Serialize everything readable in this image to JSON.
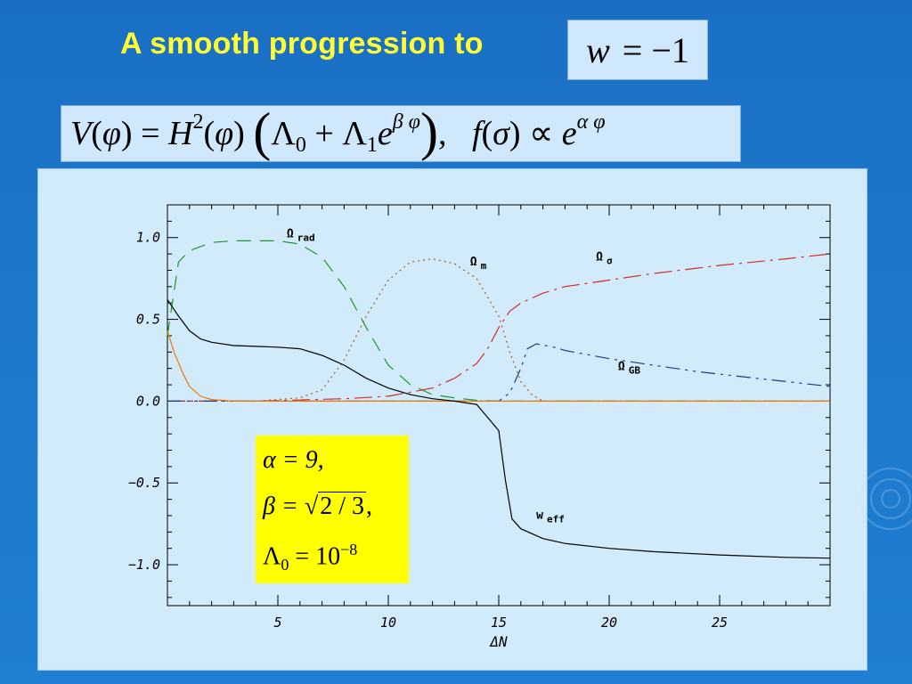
{
  "slide": {
    "title": "A smooth progression to",
    "eq_w": {
      "lhs": "w",
      "rhs": "= −1"
    }
  },
  "params": {
    "alpha": "α = 9,",
    "beta_lhs": "β = ",
    "beta_rad": "2 / 3",
    "beta_tail": ",",
    "lambda_base": "Λ",
    "lambda_sub": "0",
    "lambda_rhs": " = 10",
    "lambda_exp": "−8"
  },
  "chart_data": {
    "type": "line",
    "xlabel": "ΔN",
    "ylabel": "",
    "xlim": [
      0,
      30
    ],
    "ylim": [
      -1.25,
      1.2
    ],
    "xticks": [
      5,
      10,
      15,
      20,
      25
    ],
    "xtick_labels": [
      "5",
      "10",
      "15",
      "20",
      "25"
    ],
    "yticks": [
      1.0,
      0.5,
      0.0,
      -0.5,
      -1.0
    ],
    "ytick_labels": [
      "1.0",
      "0.5",
      "0.0",
      "−0.5",
      "−1.0"
    ],
    "grid": false,
    "series": [
      {
        "name": "Ω rad",
        "color": "#1a9a2a",
        "dash": "16 10",
        "x": [
          0.0,
          0.5,
          1.0,
          2.0,
          3.0,
          4.0,
          5.0,
          6.0,
          7.0,
          8.0,
          9.0,
          10.0,
          11.0,
          12.0,
          13.0,
          14.0,
          15.0,
          16.0,
          30.0
        ],
        "y": [
          0.4,
          0.85,
          0.92,
          0.97,
          0.98,
          0.98,
          0.98,
          0.96,
          0.88,
          0.7,
          0.45,
          0.22,
          0.1,
          0.04,
          0.02,
          0.005,
          0.0,
          0.0,
          0.0
        ]
      },
      {
        "name": "Ω m",
        "color": "#b25a1a",
        "dash": "2 4",
        "x": [
          0.0,
          4.0,
          6.0,
          7.0,
          8.0,
          9.0,
          10.0,
          11.0,
          12.0,
          13.0,
          14.0,
          15.0,
          15.5,
          16.0,
          16.5,
          17.0,
          30.0
        ],
        "y": [
          0.0,
          0.0,
          0.02,
          0.07,
          0.25,
          0.52,
          0.74,
          0.85,
          0.87,
          0.84,
          0.75,
          0.52,
          0.3,
          0.12,
          0.04,
          0.0,
          0.0
        ]
      },
      {
        "name": "Ω σ",
        "color": "#d42a2a",
        "dash": "20 6 3 6",
        "x": [
          0.0,
          4.0,
          8.0,
          10.0,
          12.0,
          13.0,
          14.0,
          14.5,
          15.0,
          15.5,
          16.0,
          17.0,
          18.0,
          20.0,
          22.0,
          25.0,
          28.0,
          30.0
        ],
        "y": [
          0.0,
          0.0,
          0.015,
          0.03,
          0.08,
          0.14,
          0.23,
          0.32,
          0.45,
          0.55,
          0.6,
          0.66,
          0.7,
          0.74,
          0.78,
          0.83,
          0.87,
          0.9
        ]
      },
      {
        "name": "Ω GB",
        "color": "#1a3c8c",
        "dash": "16 6 3 6 3 6",
        "x": [
          0.0,
          15.0,
          15.5,
          16.0,
          16.3,
          16.7,
          17.5,
          18.0,
          20.0,
          22.0,
          24.0,
          26.0,
          28.0,
          30.0
        ],
        "y": [
          0.0,
          0.0,
          0.05,
          0.2,
          0.32,
          0.35,
          0.33,
          0.31,
          0.26,
          0.22,
          0.18,
          0.15,
          0.12,
          0.09
        ]
      },
      {
        "name": "orange",
        "color": "#f07800",
        "dash": "",
        "x": [
          0.0,
          0.3,
          0.7,
          1.0,
          1.5,
          2.0,
          3.0,
          4.0,
          30.0
        ],
        "y": [
          0.43,
          0.3,
          0.17,
          0.09,
          0.03,
          0.01,
          0.0,
          0.0,
          0.0
        ]
      },
      {
        "name": "w eff",
        "color": "#000000",
        "dash": "",
        "x": [
          0.0,
          0.5,
          1.0,
          1.5,
          2.0,
          3.0,
          4.0,
          5.0,
          6.0,
          7.0,
          8.0,
          9.0,
          10.0,
          11.0,
          12.0,
          13.0,
          14.0,
          15.0,
          15.3,
          15.6,
          16.0,
          17.0,
          18.0,
          20.0,
          22.0,
          25.0,
          28.0,
          30.0
        ],
        "y": [
          0.62,
          0.52,
          0.43,
          0.38,
          0.36,
          0.34,
          0.335,
          0.33,
          0.32,
          0.28,
          0.22,
          0.14,
          0.08,
          0.04,
          0.015,
          0.0,
          -0.02,
          -0.18,
          -0.48,
          -0.72,
          -0.78,
          -0.84,
          -0.87,
          -0.9,
          -0.92,
          -0.94,
          -0.955,
          -0.96
        ]
      }
    ],
    "annotations": [
      {
        "text": "Ω",
        "sub": "rad",
        "x": 5.4,
        "y": 1.0
      },
      {
        "text": "Ω",
        "sub": "m",
        "x": 13.7,
        "y": 0.83
      },
      {
        "text": "Ω",
        "sub": "σ",
        "x": 19.4,
        "y": 0.86
      },
      {
        "text": "Ω",
        "sub": "GB",
        "x": 20.4,
        "y": 0.19
      },
      {
        "text": "w",
        "sub": "eff",
        "x": 16.7,
        "y": -0.72
      }
    ]
  }
}
